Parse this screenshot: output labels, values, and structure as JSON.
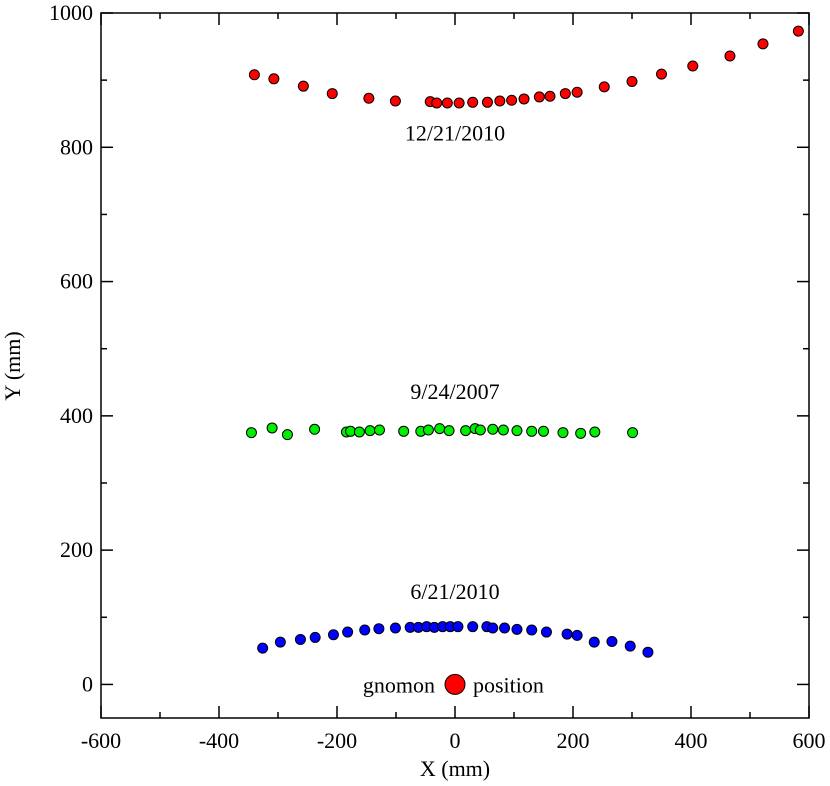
{
  "chart_data": {
    "type": "scatter",
    "title": "",
    "xlabel": "X (mm)",
    "ylabel": "Y (mm)",
    "xlim": [
      -600,
      600
    ],
    "ylim": [
      -50,
      1000
    ],
    "x_ticks": [
      -600,
      -400,
      -200,
      0,
      200,
      400,
      600
    ],
    "y_ticks": [
      0,
      200,
      400,
      600,
      800,
      1000
    ],
    "x_tick_labels": [
      "-600",
      "-400",
      "-200",
      "0",
      "200",
      "400",
      "600"
    ],
    "y_tick_labels": [
      "0",
      "200",
      "400",
      "600",
      "800",
      "1000"
    ],
    "grid": false,
    "series": [
      {
        "name": "12/21/2010",
        "color": "#ff0000",
        "points": [
          [
            -340,
            908
          ],
          [
            -307,
            902
          ],
          [
            -257,
            891
          ],
          [
            -208,
            880
          ],
          [
            -146,
            873
          ],
          [
            -101,
            869
          ],
          [
            -42,
            868
          ],
          [
            -31,
            866
          ],
          [
            -13,
            866
          ],
          [
            7,
            866
          ],
          [
            30,
            867
          ],
          [
            55,
            867
          ],
          [
            76,
            869
          ],
          [
            96,
            870
          ],
          [
            117,
            872
          ],
          [
            143,
            875
          ],
          [
            161,
            876
          ],
          [
            187,
            880
          ],
          [
            207,
            882
          ],
          [
            253,
            890
          ],
          [
            300,
            898
          ],
          [
            350,
            909
          ],
          [
            403,
            921
          ],
          [
            466,
            936
          ],
          [
            522,
            954
          ],
          [
            582,
            973
          ]
        ]
      },
      {
        "name": "9/24/2007",
        "color": "#00ee00",
        "points": [
          [
            -345,
            375
          ],
          [
            -310,
            382
          ],
          [
            -284,
            372
          ],
          [
            -238,
            380
          ],
          [
            -184,
            376
          ],
          [
            -177,
            377
          ],
          [
            -162,
            376
          ],
          [
            -144,
            378
          ],
          [
            -128,
            379
          ],
          [
            -87,
            377
          ],
          [
            -58,
            377
          ],
          [
            -45,
            379
          ],
          [
            -26,
            381
          ],
          [
            -10,
            378
          ],
          [
            18,
            378
          ],
          [
            34,
            381
          ],
          [
            43,
            379
          ],
          [
            64,
            380
          ],
          [
            82,
            379
          ],
          [
            105,
            378
          ],
          [
            130,
            377
          ],
          [
            150,
            377
          ],
          [
            183,
            375
          ],
          [
            213,
            374
          ],
          [
            237,
            376
          ],
          [
            301,
            375
          ]
        ]
      },
      {
        "name": "6/21/2010",
        "color": "#0000ff",
        "points": [
          [
            -326,
            54
          ],
          [
            -296,
            63
          ],
          [
            -262,
            67
          ],
          [
            -237,
            70
          ],
          [
            -206,
            74
          ],
          [
            -182,
            78
          ],
          [
            -153,
            81
          ],
          [
            -129,
            83
          ],
          [
            -101,
            84
          ],
          [
            -76,
            85
          ],
          [
            -62,
            85
          ],
          [
            -48,
            86
          ],
          [
            -35,
            85
          ],
          [
            -21,
            86
          ],
          [
            -8,
            86
          ],
          [
            5,
            86
          ],
          [
            30,
            86
          ],
          [
            54,
            86
          ],
          [
            64,
            84
          ],
          [
            84,
            84
          ],
          [
            105,
            82
          ],
          [
            130,
            81
          ],
          [
            155,
            78
          ],
          [
            190,
            75
          ],
          [
            207,
            73
          ],
          [
            236,
            63
          ],
          [
            266,
            64
          ],
          [
            297,
            57
          ],
          [
            327,
            48
          ]
        ]
      }
    ],
    "annotations": [
      {
        "text": "12/21/2010",
        "x": 0,
        "y": 810
      },
      {
        "text": "9/24/2007",
        "x": 0,
        "y": 425
      },
      {
        "text": "6/21/2010",
        "x": 0,
        "y": 127
      }
    ],
    "gnomon": {
      "x": 0,
      "y": 0,
      "color": "#ff0000",
      "left_text": "gnomon",
      "right_text": "position"
    }
  }
}
